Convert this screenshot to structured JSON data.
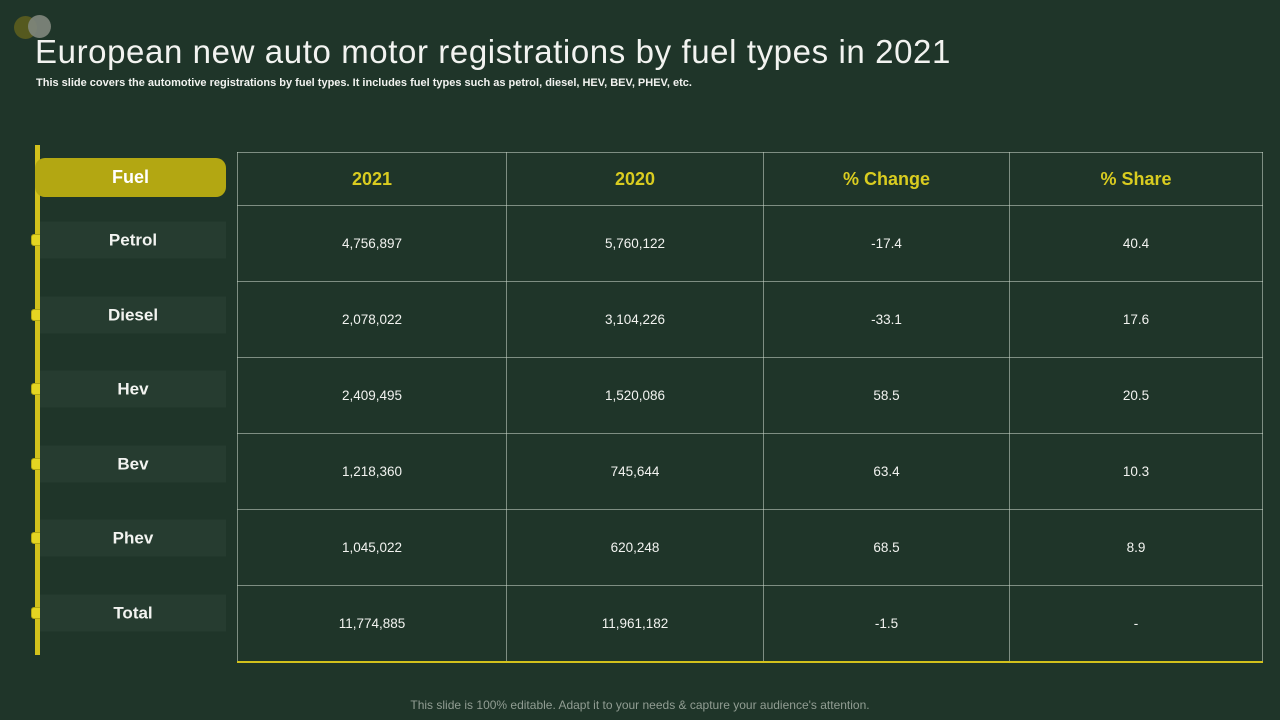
{
  "slide": {
    "title": "European new auto motor registrations by fuel types in 2021",
    "subtitle": "This slide covers the automotive registrations by fuel types. It includes fuel types such as petrol, diesel, HEV, BEV, PHEV,  etc.",
    "footer": "This slide is 100% editable. Adapt it to your needs & capture your audience's attention."
  },
  "table": {
    "row_header": "Fuel",
    "columns": [
      "2021",
      "2020",
      "% Change",
      "% Share"
    ],
    "rows": [
      {
        "label": "Petrol",
        "values": [
          "4,756,897",
          "5,760,122",
          "-17.4",
          "40.4"
        ]
      },
      {
        "label": "Diesel",
        "values": [
          "2,078,022",
          "3,104,226",
          "-33.1",
          "17.6"
        ]
      },
      {
        "label": "Hev",
        "values": [
          "2,409,495",
          "1,520,086",
          "58.5",
          "20.5"
        ]
      },
      {
        "label": "Bev",
        "values": [
          "1,218,360",
          "745,644",
          "63.4",
          "10.3"
        ]
      },
      {
        "label": "Phev",
        "values": [
          "1,045,022",
          "620,248",
          "68.5",
          "8.9"
        ]
      },
      {
        "label": "Total",
        "values": [
          "11,774,885",
          "11,961,182",
          "-1.5",
          "-"
        ]
      }
    ]
  },
  "colors": {
    "background": "#1f3529",
    "panel-chip": "#263c30",
    "accent-yellow": "#b3a712",
    "line-yellow": "#d2c11c",
    "dot-yellow": "#e5d522",
    "header-yellow": "#d9cc20",
    "table-border": "#ccd7cc8c",
    "text-white": "#f2f3f0",
    "footer-gray": "#919d93",
    "circle-olive": "#55591f",
    "circle-gray": "#7f867c"
  }
}
